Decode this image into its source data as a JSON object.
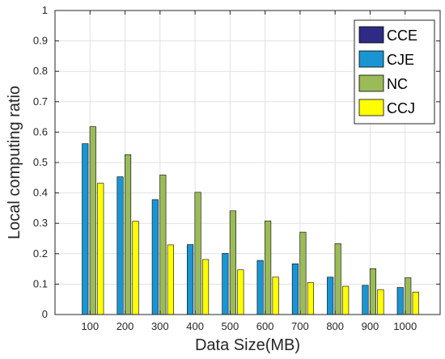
{
  "chart_data": {
    "type": "bar",
    "xlabel": "Data Size(MB)",
    "ylabel": "Local computing ratio",
    "categories": [
      "100",
      "200",
      "300",
      "400",
      "500",
      "600",
      "700",
      "800",
      "900",
      "1000"
    ],
    "ylim": [
      0,
      1
    ],
    "yticks": [
      "0",
      "0.1",
      "0.2",
      "0.3",
      "0.4",
      "0.5",
      "0.6",
      "0.7",
      "0.8",
      "0.9",
      "1"
    ],
    "grid": true,
    "legend_position": "top-right",
    "series": [
      {
        "name": "CCE",
        "color": "#2e2a85",
        "values": [
          0,
          0,
          0,
          0,
          0,
          0,
          0,
          0,
          0,
          0
        ]
      },
      {
        "name": "CJE",
        "color": "#1a95d3",
        "values": [
          0.562,
          0.453,
          0.378,
          0.23,
          0.201,
          0.178,
          0.167,
          0.123,
          0.096,
          0.089
        ]
      },
      {
        "name": "NC",
        "color": "#9bbb59",
        "values": [
          0.618,
          0.526,
          0.459,
          0.402,
          0.341,
          0.308,
          0.271,
          0.233,
          0.151,
          0.121
        ]
      },
      {
        "name": "CCJ",
        "color": "#ffff00",
        "values": [
          0.432,
          0.307,
          0.229,
          0.181,
          0.147,
          0.123,
          0.105,
          0.093,
          0.082,
          0.074
        ]
      }
    ]
  }
}
